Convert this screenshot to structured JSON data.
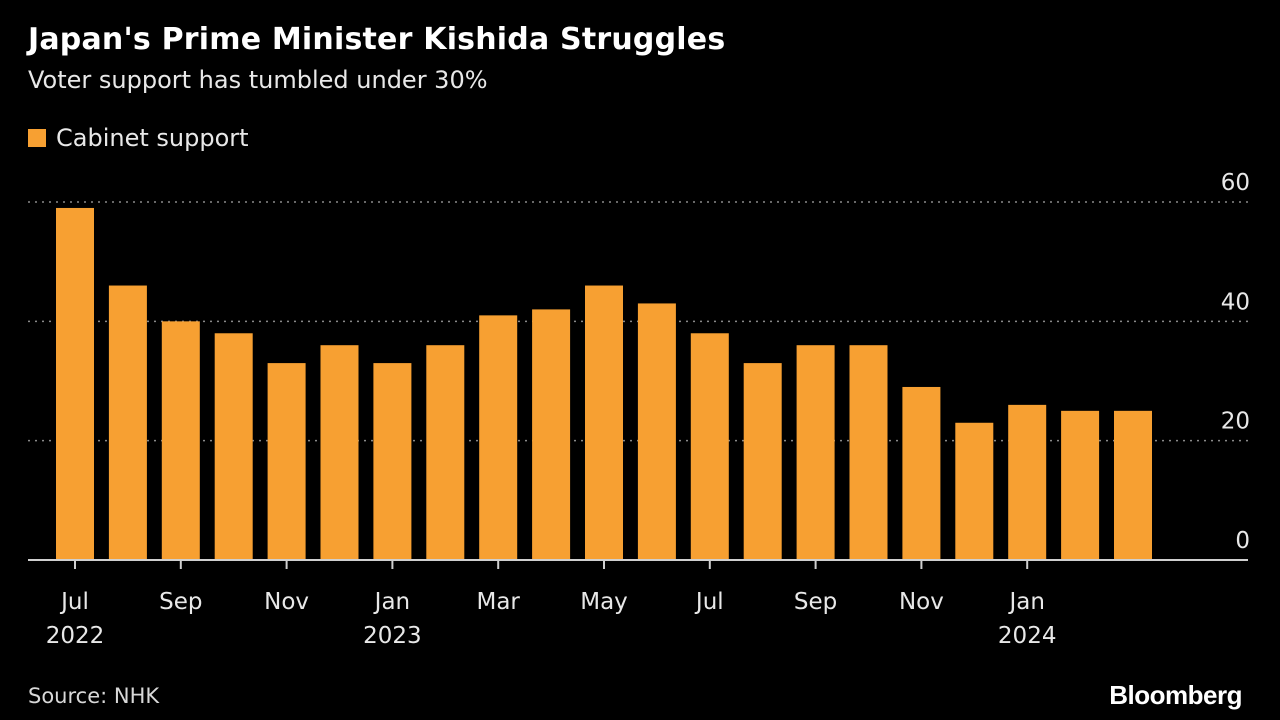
{
  "chart_data": {
    "type": "bar",
    "title": "Japan's Prime Minister Kishida Struggles",
    "subtitle": "Voter support has tumbled under 30%",
    "series": [
      {
        "name": "Cabinet support",
        "color": "#f7a032",
        "values": [
          59,
          46,
          40,
          38,
          33,
          36,
          33,
          36,
          41,
          42,
          46,
          43,
          38,
          33,
          36,
          36,
          29,
          23,
          26,
          25,
          25
        ]
      }
    ],
    "x_tick_labels": [
      {
        "index": 0,
        "month": "Jul",
        "year": "2022"
      },
      {
        "index": 2,
        "month": "Sep",
        "year": ""
      },
      {
        "index": 4,
        "month": "Nov",
        "year": ""
      },
      {
        "index": 6,
        "month": "Jan",
        "year": "2023"
      },
      {
        "index": 8,
        "month": "Mar",
        "year": ""
      },
      {
        "index": 10,
        "month": "May",
        "year": ""
      },
      {
        "index": 12,
        "month": "Jul",
        "year": ""
      },
      {
        "index": 14,
        "month": "Sep",
        "year": ""
      },
      {
        "index": 16,
        "month": "Nov",
        "year": ""
      },
      {
        "index": 18,
        "month": "Jan",
        "year": "2024"
      }
    ],
    "y_ticks": [
      0,
      20,
      40,
      60
    ],
    "ylim": [
      0,
      60
    ],
    "y_axis_position": "right",
    "grid": true,
    "grid_style": "dotted",
    "legend_position": "top-left",
    "xlabel": "",
    "ylabel": ""
  },
  "source": "Source: NHK",
  "brand": "Bloomberg"
}
